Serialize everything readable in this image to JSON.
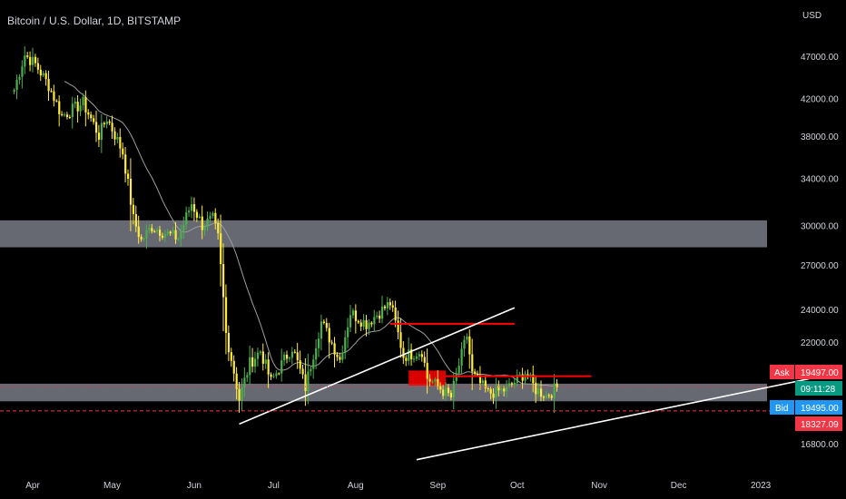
{
  "chart_data": {
    "type": "candlestick",
    "title": "Bitcoin / U.S. Dollar, 1D, BITSTAMP",
    "currency": "USD",
    "x_ticks": [
      "Apr",
      "May",
      "Jun",
      "Jul",
      "Aug",
      "Sep",
      "Oct",
      "Nov",
      "Dec",
      "2023"
    ],
    "y_ticks": [
      "47000.00",
      "42000.00",
      "38000.00",
      "34000.00",
      "30000.00",
      "27000.00",
      "24000.00",
      "22000.00",
      "16800.00"
    ],
    "ylim": [
      16000,
      49000
    ],
    "y_scale": "log",
    "price_tags": {
      "ask_label": "Ask",
      "ask_value": "19497.00",
      "countdown": "09:11:28",
      "bid_label": "Bid",
      "bid_value": "19495.00",
      "low_value": "18327.09"
    },
    "colors": {
      "up": "#4caf50",
      "down": "#ffeb3b",
      "zone": "#787b86",
      "resistance": "#ff0000",
      "trendline": "#ffffff",
      "moving_average": "#9e9e9e",
      "ask": "#f23645",
      "bid": "#2196f3",
      "countdown": "#089981"
    },
    "zones": [
      [
        28300,
        30400
      ],
      [
        18800,
        19700
      ]
    ],
    "resistance_lines": [
      {
        "from": "2022-08-14",
        "to": "2022-09-30",
        "price": 23100
      },
      {
        "from": "2022-09-04",
        "to": "2022-10-29",
        "price": 20100
      }
    ],
    "resistance_box": {
      "from": "2022-08-21",
      "to": "2022-09-04",
      "low": 19600,
      "high": 20400
    },
    "trendlines": [
      {
        "from_date": "2022-06-18",
        "from_price": 17700,
        "to_date": "2022-09-30",
        "to_price": 24100
      },
      {
        "from_date": "2022-08-24",
        "from_price": 16100,
        "to_date": "2023-01-31",
        "to_price": 20300
      }
    ],
    "dashed_levels": [
      {
        "price": 19550,
        "color": "#f23645"
      },
      {
        "price": 18330,
        "color": "#f23645"
      }
    ],
    "anchors": [
      [
        "2022-03-25",
        43000
      ],
      [
        "2022-03-29",
        47200
      ],
      [
        "2022-04-02",
        46000
      ],
      [
        "2022-04-07",
        43500
      ],
      [
        "2022-04-12",
        40100
      ],
      [
        "2022-04-20",
        41500
      ],
      [
        "2022-04-26",
        38100
      ],
      [
        "2022-04-29",
        39900
      ],
      [
        "2022-05-05",
        36400
      ],
      [
        "2022-05-09",
        30500
      ],
      [
        "2022-05-12",
        28800
      ],
      [
        "2022-05-16",
        29900
      ],
      [
        "2022-05-22",
        29300
      ],
      [
        "2022-05-26",
        29000
      ],
      [
        "2022-05-31",
        31800
      ],
      [
        "2022-06-04",
        30000
      ],
      [
        "2022-06-08",
        30500
      ],
      [
        "2022-06-10",
        29000
      ],
      [
        "2022-06-13",
        22500
      ],
      [
        "2022-06-18",
        18900
      ],
      [
        "2022-06-22",
        20800
      ],
      [
        "2022-06-26",
        21500
      ],
      [
        "2022-06-30",
        19800
      ],
      [
        "2022-07-08",
        21700
      ],
      [
        "2022-07-13",
        19500
      ],
      [
        "2022-07-19",
        23200
      ],
      [
        "2022-07-26",
        21000
      ],
      [
        "2022-07-30",
        23800
      ],
      [
        "2022-08-05",
        23100
      ],
      [
        "2022-08-14",
        24400
      ],
      [
        "2022-08-19",
        21200
      ],
      [
        "2022-08-26",
        21500
      ],
      [
        "2022-08-28",
        20000
      ],
      [
        "2022-09-06",
        19000
      ],
      [
        "2022-09-12",
        22400
      ],
      [
        "2022-09-14",
        20200
      ],
      [
        "2022-09-20",
        19200
      ],
      [
        "2022-09-27",
        19400
      ],
      [
        "2022-10-04",
        20300
      ],
      [
        "2022-10-08",
        19400
      ],
      [
        "2022-10-12",
        19100
      ],
      [
        "2022-10-16",
        19500
      ]
    ]
  }
}
